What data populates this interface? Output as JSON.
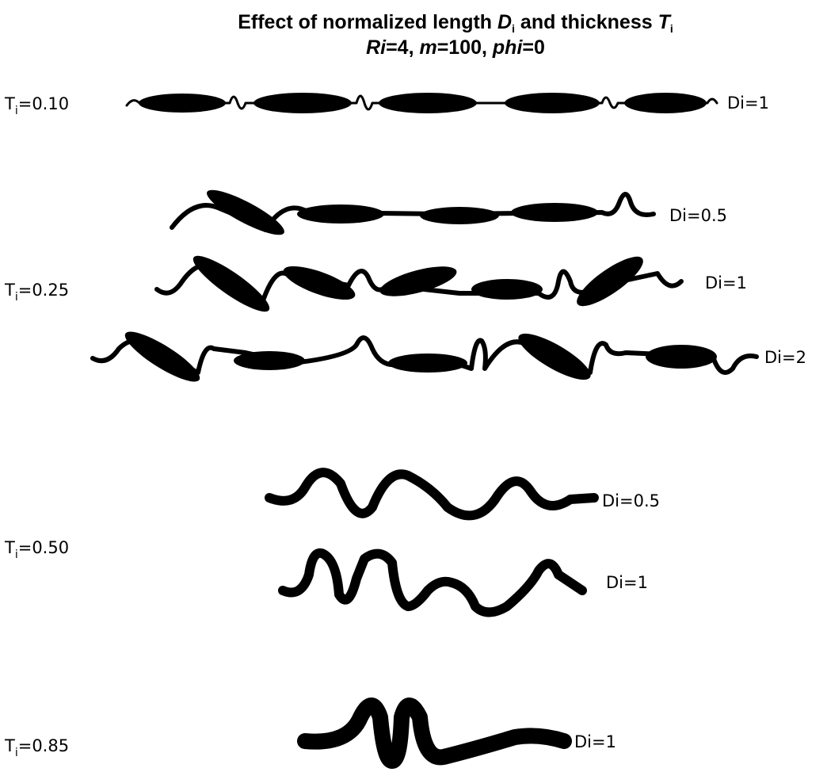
{
  "title": {
    "line1": [
      "Effect of normalized length ",
      "D",
      "i",
      " and thickness ",
      "T",
      "i"
    ],
    "line2": [
      "Ri",
      "=4, ",
      "m",
      "=100, ",
      "phi",
      "=0"
    ]
  },
  "groups": [
    {
      "label": [
        "T",
        "i",
        "=0.10"
      ],
      "strands": [
        "Di=1"
      ]
    },
    {
      "label": [
        "T",
        "i",
        "=0.25"
      ],
      "strands": [
        "Di=0.5",
        "Di=1",
        "Di=2"
      ]
    },
    {
      "label": [
        "T",
        "i",
        "=0.50"
      ],
      "strands": [
        "Di=0.5",
        "Di=1"
      ]
    },
    {
      "label": [
        "T",
        "i",
        "=0.85"
      ],
      "strands": [
        "Di=1"
      ]
    }
  ]
}
